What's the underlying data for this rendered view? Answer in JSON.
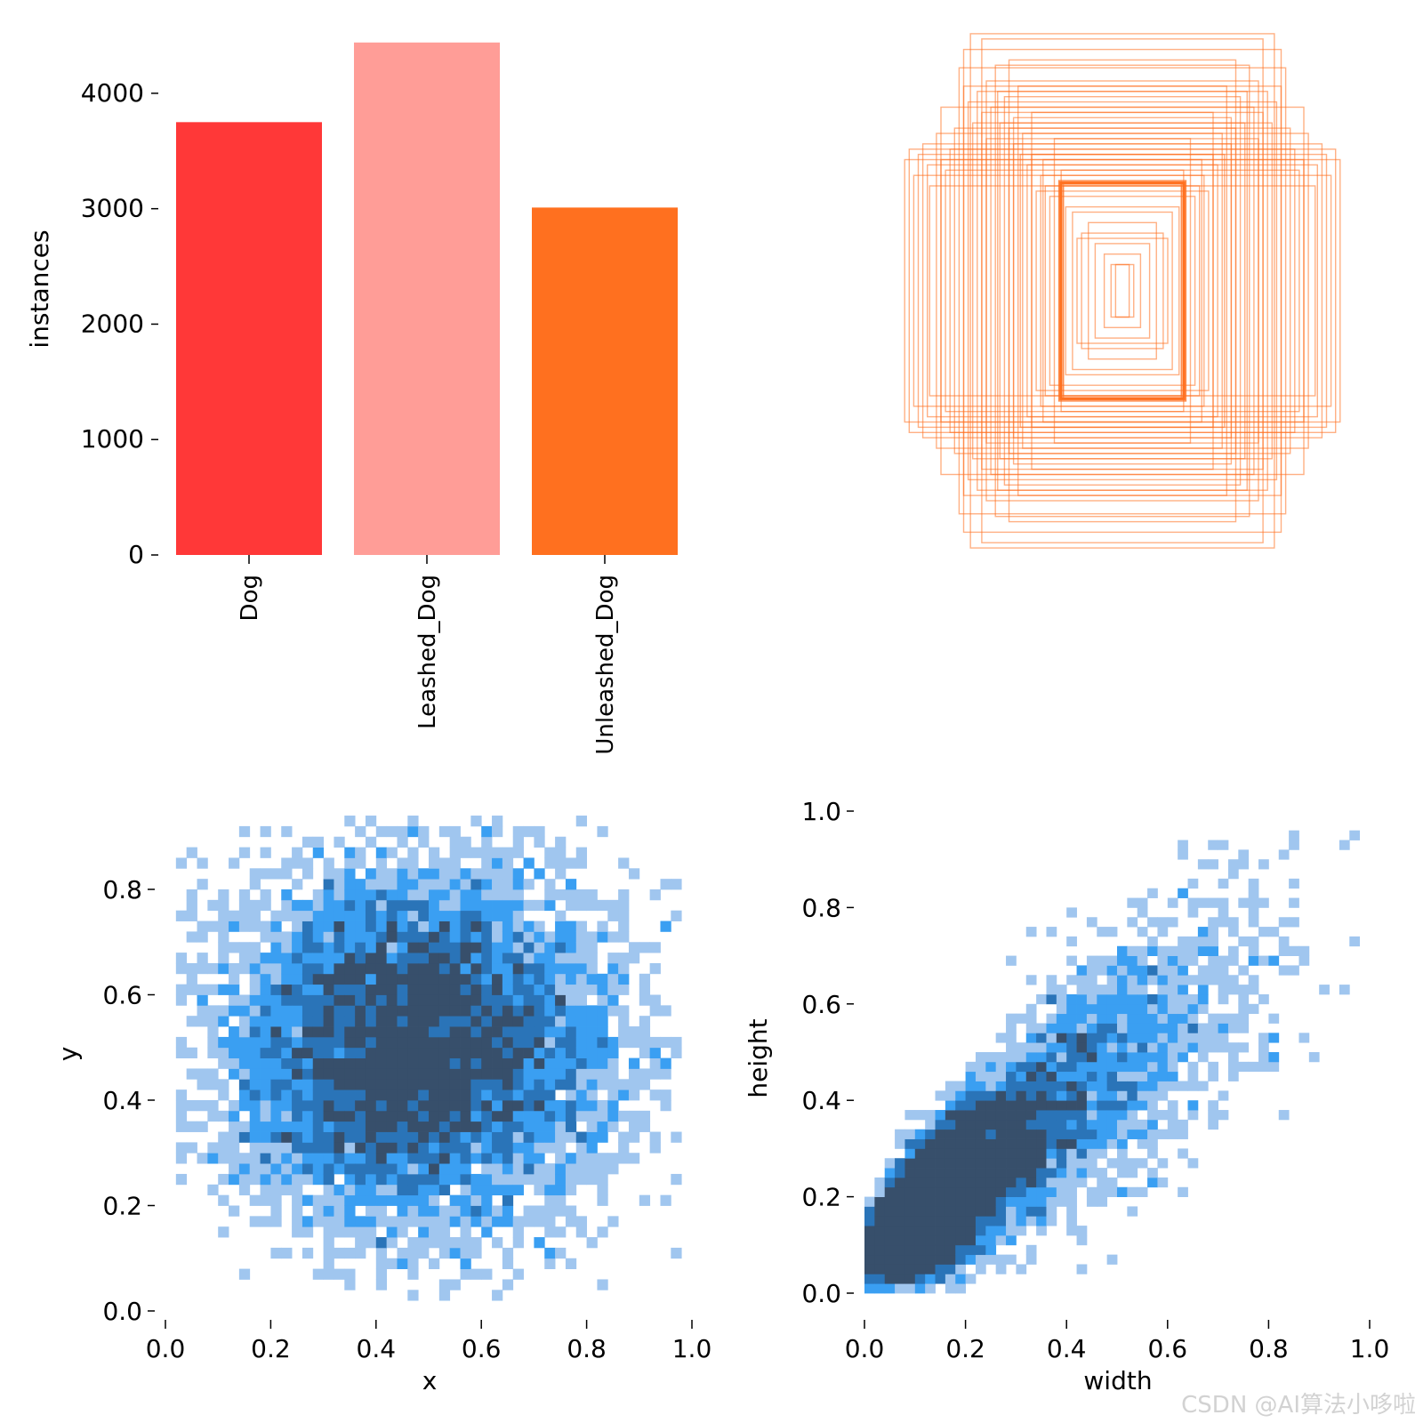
{
  "chart_data": [
    {
      "id": "class-instances",
      "type": "bar",
      "ylabel": "instances",
      "categories": [
        "Dog",
        "Leashed_Dog",
        "Unleashed_Dog"
      ],
      "values": [
        3750,
        4440,
        3010
      ],
      "colors": [
        "#ff3838",
        "#ff9d97",
        "#ff701f"
      ],
      "ylim": [
        0,
        4500
      ],
      "yticks": [
        0,
        1000,
        2000,
        3000,
        4000
      ],
      "grid": false
    },
    {
      "id": "box-shapes",
      "type": "other",
      "description_kind": "overlaid centered bounding boxes",
      "color": "#ff701f",
      "boxes_wh": [
        [
          0.2,
          0.2
        ],
        [
          0.38,
          0.38
        ],
        [
          0.5,
          0.62
        ],
        [
          0.6,
          0.8
        ],
        [
          0.55,
          0.76
        ],
        [
          0.48,
          0.66
        ],
        [
          0.28,
          0.42
        ],
        [
          0.35,
          0.5
        ],
        [
          0.45,
          0.52
        ],
        [
          0.52,
          0.74
        ],
        [
          0.42,
          0.48
        ],
        [
          0.67,
          0.98
        ],
        [
          0.72,
          0.85
        ],
        [
          0.8,
          0.7
        ],
        [
          0.88,
          0.56
        ],
        [
          0.96,
          0.5
        ],
        [
          0.92,
          0.44
        ],
        [
          0.85,
          0.4
        ],
        [
          0.78,
          0.46
        ],
        [
          0.6,
          0.58
        ],
        [
          0.66,
          0.64
        ],
        [
          0.7,
          0.92
        ],
        [
          0.56,
          0.86
        ],
        [
          0.46,
          0.78
        ],
        [
          0.4,
          0.68
        ],
        [
          0.3,
          0.58
        ],
        [
          0.25,
          0.32
        ],
        [
          0.15,
          0.26
        ],
        [
          0.12,
          0.18
        ],
        [
          0.08,
          0.14
        ],
        [
          0.05,
          0.1
        ],
        [
          0.03,
          0.1
        ],
        [
          0.62,
          0.68
        ],
        [
          0.74,
          0.62
        ],
        [
          0.82,
          0.6
        ],
        [
          0.9,
          0.52
        ],
        [
          0.64,
          0.76
        ],
        [
          0.58,
          0.7
        ],
        [
          0.5,
          0.88
        ],
        [
          0.44,
          0.6
        ],
        [
          0.36,
          0.44
        ],
        [
          0.32,
          0.36
        ],
        [
          0.27,
          0.46
        ],
        [
          0.22,
          0.3
        ],
        [
          0.18,
          0.22
        ],
        [
          0.68,
          0.72
        ],
        [
          0.76,
          0.54
        ],
        [
          0.86,
          0.48
        ],
        [
          0.54,
          0.64
        ],
        [
          0.48,
          0.56
        ],
        [
          0.4,
          0.52
        ],
        [
          0.34,
          0.4
        ],
        [
          0.26,
          0.4
        ],
        [
          0.27,
          0.41
        ],
        [
          0.28,
          0.42
        ],
        [
          0.26,
          0.41
        ],
        [
          0.62,
          0.96
        ],
        [
          0.7,
          0.78
        ],
        [
          0.94,
          0.54
        ],
        [
          0.8,
          0.5
        ]
      ]
    },
    {
      "id": "xy-hist",
      "type": "heatmap",
      "xlabel": "x",
      "ylabel": "y",
      "xlim": [
        0,
        1
      ],
      "ylim": [
        0,
        0.95
      ],
      "xticks": [
        0.0,
        0.2,
        0.4,
        0.6,
        0.8,
        1.0
      ],
      "yticks": [
        0.0,
        0.2,
        0.4,
        0.6,
        0.8
      ],
      "colormap": [
        "#a0c6ef",
        "#3a9ff2",
        "#2a74b8",
        "#374f6b"
      ],
      "bins": 50,
      "distribution": {
        "x_mean": 0.48,
        "x_sd": 0.18,
        "y_mean": 0.5,
        "y_sd": 0.17,
        "x_range": [
          0.02,
          0.98
        ],
        "y_range": [
          0.03,
          0.93
        ]
      }
    },
    {
      "id": "wh-hist",
      "type": "heatmap",
      "xlabel": "width",
      "ylabel": "height",
      "xlim": [
        0,
        1
      ],
      "ylim": [
        0,
        1
      ],
      "xticks": [
        0.0,
        0.2,
        0.4,
        0.6,
        0.8,
        1.0
      ],
      "yticks": [
        0.0,
        0.2,
        0.4,
        0.6,
        0.8,
        1.0
      ],
      "colormap": [
        "#a0c6ef",
        "#3a9ff2",
        "#2a74b8",
        "#374f6b"
      ],
      "bins": 50,
      "distribution": {
        "peak_w": 0.12,
        "peak_h": 0.22,
        "height_per_width": 0.8,
        "x_range": [
          0.01,
          0.99
        ],
        "y_range": [
          0.01,
          0.96
        ]
      }
    }
  ],
  "watermark": "CSDN @AI算法小哆啦"
}
